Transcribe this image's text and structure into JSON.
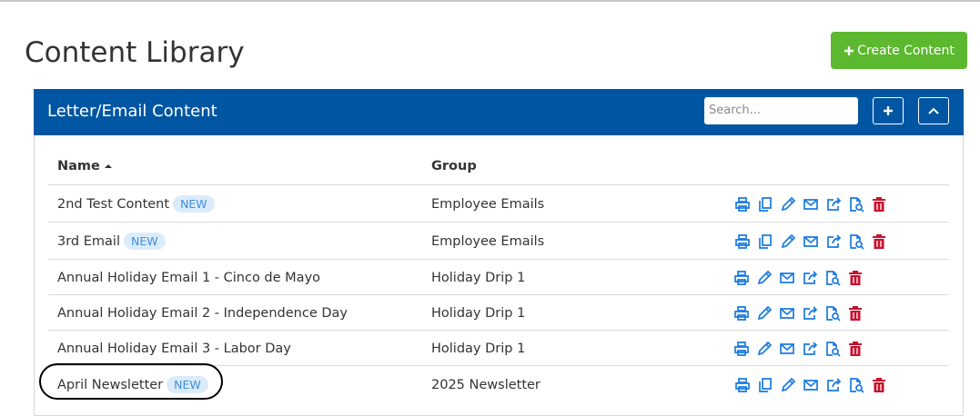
{
  "header": {
    "title": "Content Library",
    "create_button": "Create Content"
  },
  "panel": {
    "title": "Letter/Email Content",
    "search_placeholder": "Search...",
    "table": {
      "columns": [
        "Name",
        "Group"
      ],
      "rows": [
        {
          "name": "2nd Test Content",
          "badge": "NEW",
          "group": "Employee Emails"
        },
        {
          "name": "3rd Email",
          "badge": "NEW",
          "group": "Employee Emails"
        },
        {
          "name": "Annual Holiday Email 1 - Cinco de Mayo",
          "group": "Holiday Drip 1"
        },
        {
          "name": "Annual Holiday Email 2 - Independence Day",
          "group": "Holiday Drip 1"
        },
        {
          "name": "Annual Holiday Email 3 - Labor Day",
          "group": "Holiday Drip 1"
        },
        {
          "name": "April Newsletter",
          "badge": "NEW",
          "group": "2025 Newsletter"
        }
      ]
    }
  }
}
